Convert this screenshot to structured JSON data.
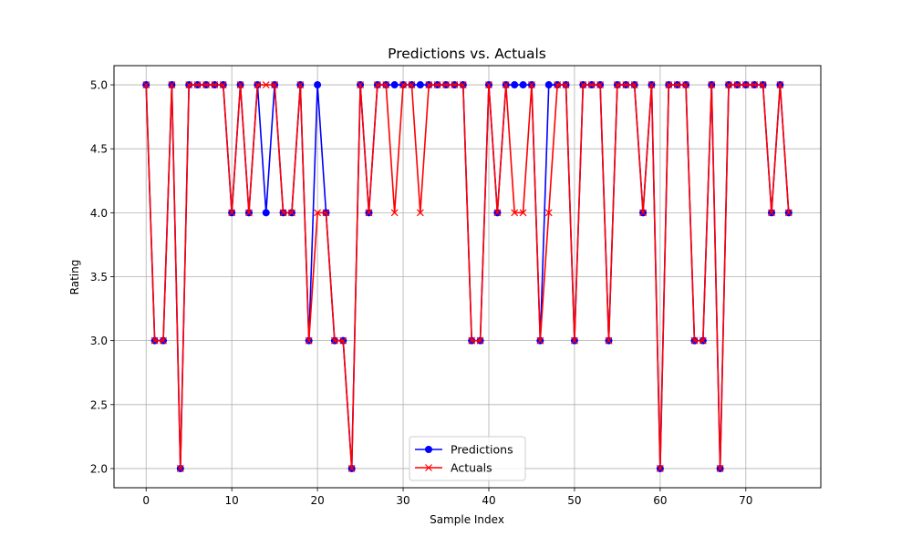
{
  "chart_data": {
    "type": "line",
    "title": "Predictions vs. Actuals",
    "xlabel": "Sample Index",
    "ylabel": "Rating",
    "xlim": [
      -3.75,
      78.75
    ],
    "ylim": [
      1.85,
      5.15
    ],
    "xticks": [
      0,
      10,
      20,
      30,
      40,
      50,
      60,
      70
    ],
    "yticks": [
      2.0,
      2.5,
      3.0,
      3.5,
      4.0,
      4.5,
      5.0
    ],
    "grid": true,
    "legend_position": "bottom-center",
    "x": [
      0,
      1,
      2,
      3,
      4,
      5,
      6,
      7,
      8,
      9,
      10,
      11,
      12,
      13,
      14,
      15,
      16,
      17,
      18,
      19,
      20,
      21,
      22,
      23,
      24,
      25,
      26,
      27,
      28,
      29,
      30,
      31,
      32,
      33,
      34,
      35,
      36,
      37,
      38,
      39,
      40,
      41,
      42,
      43,
      44,
      45,
      46,
      47,
      48,
      49,
      50,
      51,
      52,
      53,
      54,
      55,
      56,
      57,
      58,
      59,
      60,
      61,
      62,
      63,
      64,
      65,
      66,
      67,
      68,
      69,
      70,
      71,
      72,
      73,
      74,
      75
    ],
    "series": [
      {
        "name": "Predictions",
        "color": "#0000ff",
        "marker": "circle",
        "values": [
          5,
          3,
          3,
          5,
          2,
          5,
          5,
          5,
          5,
          5,
          4,
          5,
          4,
          5,
          4,
          5,
          4,
          4,
          5,
          3,
          5,
          4,
          3,
          3,
          2,
          5,
          4,
          5,
          5,
          5,
          5,
          5,
          5,
          5,
          5,
          5,
          5,
          5,
          3,
          3,
          5,
          4,
          5,
          5,
          5,
          5,
          3,
          5,
          5,
          5,
          3,
          5,
          5,
          5,
          3,
          5,
          5,
          5,
          4,
          5,
          2,
          5,
          5,
          5,
          3,
          3,
          5,
          2,
          5,
          5,
          5,
          5,
          5,
          4,
          5,
          4
        ]
      },
      {
        "name": "Actuals",
        "color": "#ff0000",
        "marker": "x",
        "values": [
          5,
          3,
          3,
          5,
          2,
          5,
          5,
          5,
          5,
          5,
          4,
          5,
          4,
          5,
          5,
          5,
          4,
          4,
          5,
          3,
          4,
          4,
          3,
          3,
          2,
          5,
          4,
          5,
          5,
          4,
          5,
          5,
          4,
          5,
          5,
          5,
          5,
          5,
          3,
          3,
          5,
          4,
          5,
          4,
          4,
          5,
          3,
          4,
          5,
          5,
          3,
          5,
          5,
          5,
          3,
          5,
          5,
          5,
          4,
          5,
          2,
          5,
          5,
          5,
          3,
          3,
          5,
          2,
          5,
          5,
          5,
          5,
          5,
          4,
          5,
          4
        ]
      }
    ]
  }
}
